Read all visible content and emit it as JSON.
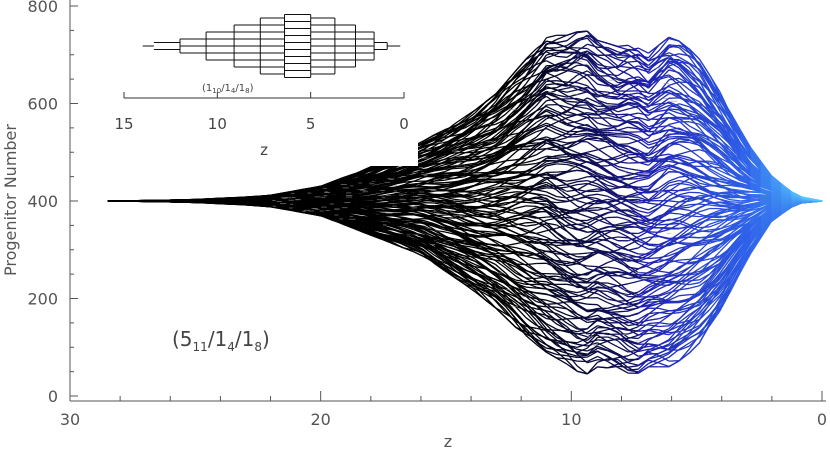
{
  "chart_data": [
    {
      "type": "line",
      "title": "",
      "xlabel": "z",
      "ylabel": "Progenitor Number",
      "xlim": [
        30,
        0
      ],
      "ylim": [
        0,
        800
      ],
      "x_ticks": [
        30,
        20,
        10,
        0
      ],
      "y_ticks": [
        0,
        200,
        400,
        600,
        800
      ],
      "x_tick_labels": [
        "30",
        "20",
        "10",
        "0"
      ],
      "y_tick_labels": [
        "0",
        "200",
        "400",
        "600",
        "800"
      ],
      "annotation": {
        "base": "(5",
        "sub1": "11",
        "mid1": "/1",
        "sub2": "4",
        "mid2": "/1",
        "sub3": "8",
        "end": ")"
      },
      "envelope": {
        "z": [
          28.5,
          27,
          25,
          23,
          22,
          20,
          18,
          16,
          14,
          13,
          12,
          11,
          10,
          9.5,
          9,
          8,
          7.5,
          7,
          6,
          5,
          4,
          3,
          2,
          1,
          0
        ],
        "upper": [
          400,
          401,
          403,
          408,
          412,
          430,
          470,
          520,
          580,
          620,
          680,
          740,
          740,
          755,
          730,
          715,
          730,
          700,
          740,
          700,
          620,
          520,
          450,
          410,
          400
        ],
        "lower": [
          400,
          399,
          397,
          392,
          388,
          370,
          330,
          290,
          220,
          180,
          130,
          90,
          60,
          40,
          60,
          55,
          40,
          60,
          60,
          100,
          180,
          280,
          360,
          395,
          400
        ]
      },
      "colors": {
        "early": "#000000",
        "mid": "#1c1ca8",
        "late": "#2e5ee8",
        "latest": "#56c8ff"
      },
      "grid": false
    },
    {
      "type": "line",
      "title": "",
      "xlabel": "z",
      "ylabel": "",
      "xlim": [
        15,
        0
      ],
      "x_ticks": [
        15,
        10,
        5,
        0
      ],
      "x_tick_labels": [
        "15",
        "10",
        "5",
        "0"
      ],
      "annotation": {
        "base": "(1",
        "sub1": "10",
        "mid1": "/1",
        "sub2": "4",
        "mid2": "/1",
        "sub3": "8",
        "end": ")"
      },
      "progenitor_counts": {
        "z": [
          13.4,
          12.0,
          10.6,
          9.1,
          7.7,
          6.4,
          5.0,
          3.7,
          2.6,
          1.6,
          0.9
        ],
        "n": [
          2,
          3,
          5,
          7,
          9,
          10,
          9,
          7,
          5,
          2,
          1
        ]
      },
      "grid": false
    }
  ]
}
